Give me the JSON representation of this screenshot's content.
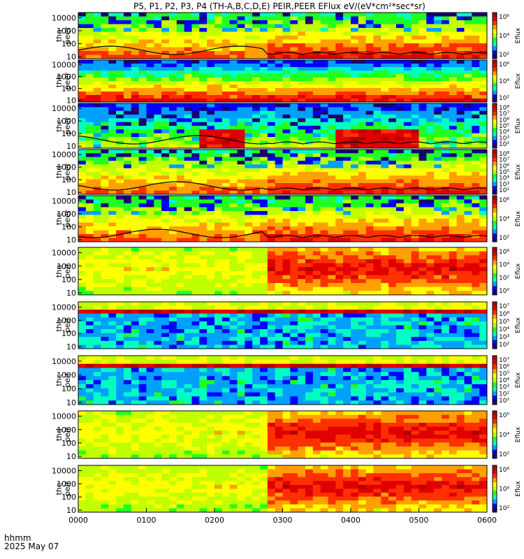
{
  "title": "P5, P1, P2, P3, P4 (TH-A,B,C,D,E) PEIR,PEER EFlux eV/(eV*cm²*sec*sr)",
  "x_axis": {
    "label_line1": "hhmm",
    "label_line2": "2025 May 07",
    "tick_labels": [
      "0000",
      "0100",
      "0200",
      "0300",
      "0400",
      "0500",
      "0600"
    ]
  },
  "colorbar_label": "Eflux",
  "colors": {
    "ramp": [
      "#1a0070",
      "#0000ff",
      "#00a0ff",
      "#00ffc0",
      "#20ff20",
      "#c0ff00",
      "#ffff00",
      "#ffa000",
      "#ff3000",
      "#e00000",
      "#b00000"
    ],
    "black_line": "#000000"
  },
  "chart_data": [
    {
      "type": "heatmap",
      "ylabel_line1": "tha",
      "ylabel_line2": "peer",
      "yticks": [
        "10000",
        "1000",
        "100",
        "10"
      ],
      "cbar_ticks": [
        "10⁶",
        "10⁴",
        "10²"
      ],
      "regime": "ion_like_transition",
      "trace": true
    },
    {
      "type": "heatmap",
      "ylabel_line1": "thb",
      "ylabel_line2": "peer",
      "yticks": [
        "10000",
        "1000",
        "100",
        "10"
      ],
      "cbar_ticks": [
        "10⁶",
        "10⁴",
        "10²"
      ],
      "regime": "banded",
      "trace": false
    },
    {
      "type": "heatmap",
      "ylabel_line1": "thc",
      "ylabel_line2": "peer",
      "yticks": [
        "10000",
        "1000",
        "100",
        "10"
      ],
      "cbar_ticks": [
        "10⁸",
        "10⁷",
        "10⁶",
        "10⁵",
        "10⁴",
        "10³",
        "10²"
      ],
      "regime": "noisy_blue",
      "trace": true
    },
    {
      "type": "heatmap",
      "ylabel_line1": "thd",
      "ylabel_line2": "peer",
      "yticks": [
        "10000",
        "1000",
        "100",
        "10"
      ],
      "cbar_ticks": [
        "10⁸",
        "10⁷",
        "10⁶",
        "10⁵",
        "10⁴",
        "10³",
        "10²"
      ],
      "regime": "ion_like_transition",
      "trace": true
    },
    {
      "type": "heatmap",
      "ylabel_line1": "the",
      "ylabel_line2": "peer",
      "yticks": [
        "10000",
        "1000",
        "100",
        "10"
      ],
      "cbar_ticks": [
        "10⁶",
        "10⁴",
        "10²"
      ],
      "regime": "ion_like_transition",
      "trace": true
    },
    {
      "type": "heatmap",
      "ylabel_line1": "tha",
      "ylabel_line2": "peir",
      "yticks": [
        "10000",
        "1000",
        "100",
        "10"
      ],
      "cbar_ticks": [
        "10⁶",
        "10⁴",
        "10²",
        "10⁰"
      ],
      "regime": "ion_transition",
      "trace": false
    },
    {
      "type": "heatmap",
      "ylabel_line1": "thb",
      "ylabel_line2": "peir",
      "yticks": [
        "10000",
        "1000",
        "100",
        "10"
      ],
      "cbar_ticks": [
        "10⁷",
        "10⁶",
        "10⁵",
        "10⁴",
        "10³",
        "10²"
      ],
      "regime": "narrow_band_high",
      "trace": false
    },
    {
      "type": "heatmap",
      "ylabel_line1": "thc",
      "ylabel_line2": "peir",
      "yticks": [
        "10000",
        "1000",
        "100",
        "10"
      ],
      "cbar_ticks": [
        "10⁷",
        "10⁶",
        "10⁵",
        "10⁴",
        "10³",
        "10²",
        "10¹"
      ],
      "regime": "narrow_band_high",
      "trace": false
    },
    {
      "type": "heatmap",
      "ylabel_line1": "thd",
      "ylabel_line2": "peir",
      "yticks": [
        "10000",
        "1000",
        "100",
        "10"
      ],
      "cbar_ticks": [
        "10⁵",
        "10⁴",
        "10²"
      ],
      "regime": "ion_transition",
      "trace": false
    },
    {
      "type": "heatmap",
      "ylabel_line1": "the",
      "ylabel_line2": "peir",
      "yticks": [
        "10000",
        "1000",
        "100",
        "10"
      ],
      "cbar_ticks": [
        "10⁶",
        "10⁴",
        "10²"
      ],
      "regime": "ion_transition",
      "trace": false
    }
  ]
}
